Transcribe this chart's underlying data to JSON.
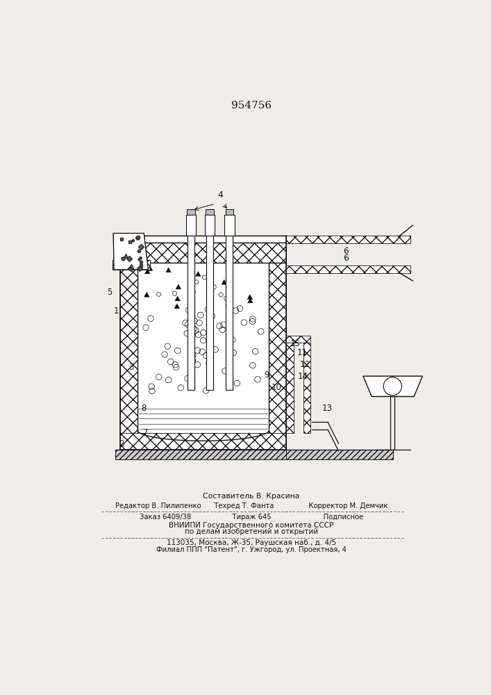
{
  "patent_number": "954756",
  "bg": "#f0ede8",
  "lc": "#111111",
  "footer_lines": [
    "Составитель В. Красина",
    "Редактор В. Пилипенко      Техред Т. Фанта                Корректор М. Демчик",
    "Заказ 6409/38                   Тираж 645                        Подписное",
    "ВНИИПИ Государственного комитета СССР",
    "по делам изобретений и открытий",
    "113035, Москва, Ж-35, Раушская наб., д. 4/5",
    "Филиал ППП \"Патент\", г. Ужгород, ул. Проектная, 4"
  ]
}
